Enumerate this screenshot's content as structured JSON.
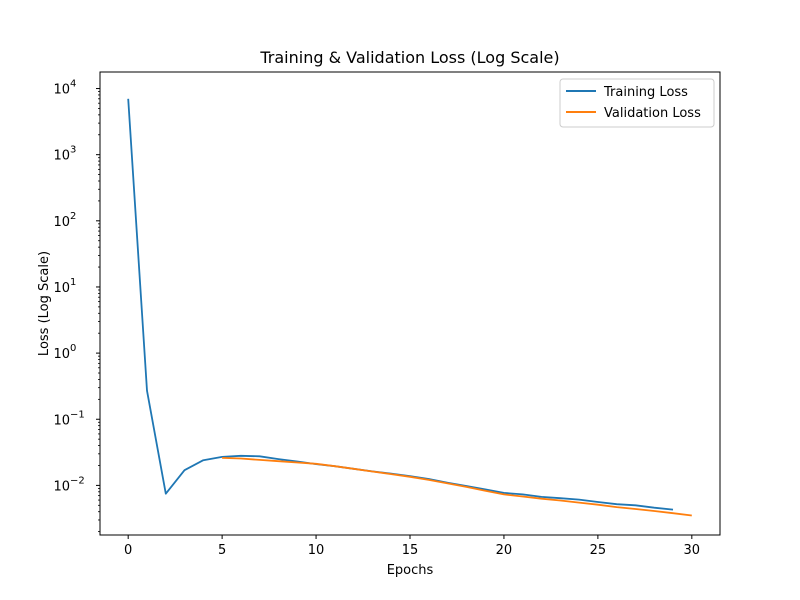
{
  "chart_data": {
    "type": "line",
    "title": "Training & Validation Loss (Log Scale)",
    "xlabel": "Epochs",
    "ylabel": "Loss (Log Scale)",
    "xlim": [
      -1.5,
      31.5
    ],
    "ylim_log10": [
      -2.75,
      4.25
    ],
    "x_ticks": [
      0,
      5,
      10,
      15,
      20,
      25,
      30
    ],
    "y_tick_exponents": [
      -2,
      -1,
      0,
      1,
      2,
      3,
      4
    ],
    "y_tick_base": "10",
    "legend_position": "upper-right",
    "series": [
      {
        "name": "Training Loss",
        "color": "#1f77b4",
        "x": [
          0,
          1,
          2,
          3,
          4,
          5,
          6,
          7,
          8,
          9,
          10,
          11,
          12,
          13,
          14,
          15,
          16,
          17,
          18,
          19,
          20,
          21,
          22,
          23,
          24,
          25,
          26,
          27,
          28,
          29
        ],
        "values": [
          7000,
          0.27,
          0.0075,
          0.017,
          0.024,
          0.027,
          0.028,
          0.0275,
          0.025,
          0.023,
          0.021,
          0.0195,
          0.0178,
          0.0163,
          0.015,
          0.0138,
          0.0125,
          0.011,
          0.0098,
          0.0087,
          0.0077,
          0.0073,
          0.0067,
          0.0064,
          0.0061,
          0.0056,
          0.0052,
          0.005,
          0.0046,
          0.0043
        ]
      },
      {
        "name": "Validation Loss",
        "color": "#ff7f0e",
        "x": [
          5,
          6,
          7,
          8,
          9,
          10,
          11,
          12,
          13,
          14,
          15,
          16,
          17,
          18,
          19,
          20,
          21,
          22,
          23,
          24,
          25,
          26,
          27,
          28,
          29,
          30
        ],
        "values": [
          0.026,
          0.0255,
          0.0243,
          0.0232,
          0.0222,
          0.0212,
          0.0195,
          0.0178,
          0.0162,
          0.0148,
          0.0135,
          0.0121,
          0.0107,
          0.0095,
          0.0083,
          0.0073,
          0.0068,
          0.0063,
          0.0059,
          0.0055,
          0.0051,
          0.0047,
          0.0044,
          0.0041,
          0.0038,
          0.0035
        ]
      }
    ]
  }
}
